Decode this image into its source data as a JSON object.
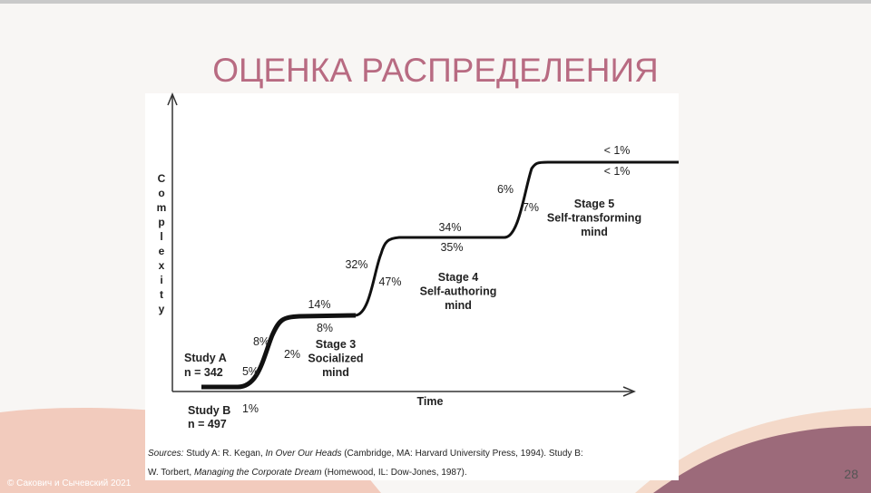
{
  "slide": {
    "title": "ОЦЕНКА РАСПРЕДЕЛЕНИЯ",
    "page_number": "28",
    "copyright": "© Сакович и Сычевский 2021"
  },
  "diagram": {
    "y_axis_label": "Complexity",
    "x_axis_label": "Time",
    "study_a": [
      "Study A",
      "n = 342"
    ],
    "study_b": [
      "Study B",
      "n = 497"
    ],
    "percent_labels": [
      "1%",
      "5%",
      "8%",
      "2%",
      "14%",
      "8%",
      "32%",
      "47%",
      "34%",
      "35%",
      "6%",
      "7%",
      "< 1%",
      "< 1%"
    ],
    "stages": [
      [
        "Stage 3",
        "Socialized",
        "mind"
      ],
      [
        "Stage 4",
        "Self-authoring",
        "mind"
      ],
      [
        "Stage 5",
        "Self-transforming",
        "mind"
      ]
    ],
    "sources": [
      [
        "Sources:",
        " Study A: R. Kegan, ",
        "In Over Our Heads",
        " (Cambridge, MA: Harvard University Press, 1994). Study B:"
      ],
      [
        "W. Torbert, ",
        "Managing the Corporate Dream",
        " (Homewood, IL: Dow-Jones, 1987)."
      ]
    ]
  }
}
